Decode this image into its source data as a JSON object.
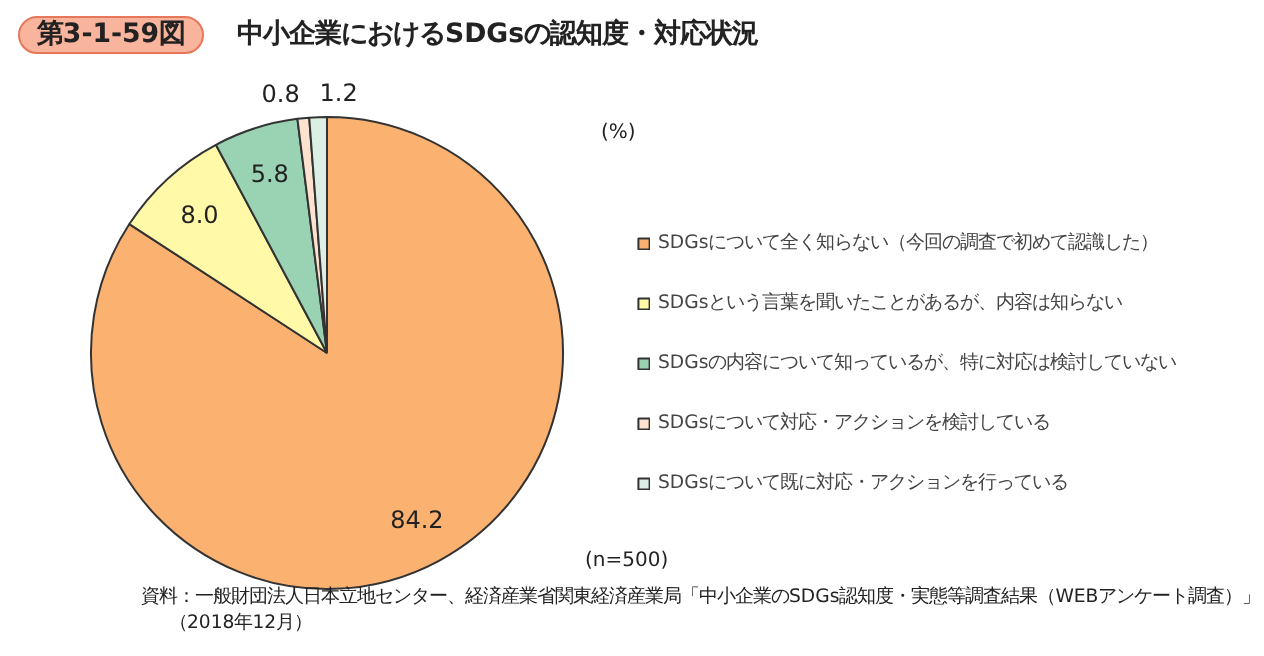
{
  "chart_data": {
    "type": "pie",
    "title": "第3-1-59図",
    "subtitle": "中小企業におけるSDGsの認知度・対応状況",
    "categories": [
      "SDGsについて全く知らない（今回の調査で初めて認識した）",
      "SDGsという言葉を聞いたことがあるが、内容は知らない",
      "SDGsの内容について知っているが、特に対応は検討していない",
      "SDGsについて対応・アクションを検討している",
      "SDGsについて既に対応・アクションを行っている"
    ],
    "values": [
      84.2,
      8.0,
      5.8,
      0.8,
      1.2
    ],
    "colors": [
      "#fbb271",
      "#fff9a8",
      "#99d3b3",
      "#fde3cf",
      "#dcefe4"
    ],
    "value_labels": [
      "84.2",
      "8.0",
      "5.8",
      "0.8",
      "1.2"
    ],
    "legend": "right",
    "annotations": [
      "(%)",
      "(n=500)",
      "資料：一般財団法人日本立地センター、経済産業省関東経済産業局「中小企業のSDGs認知度・実態等調査結果（WEBアンケート調査）」",
      "（2018年12月）"
    ]
  }
}
